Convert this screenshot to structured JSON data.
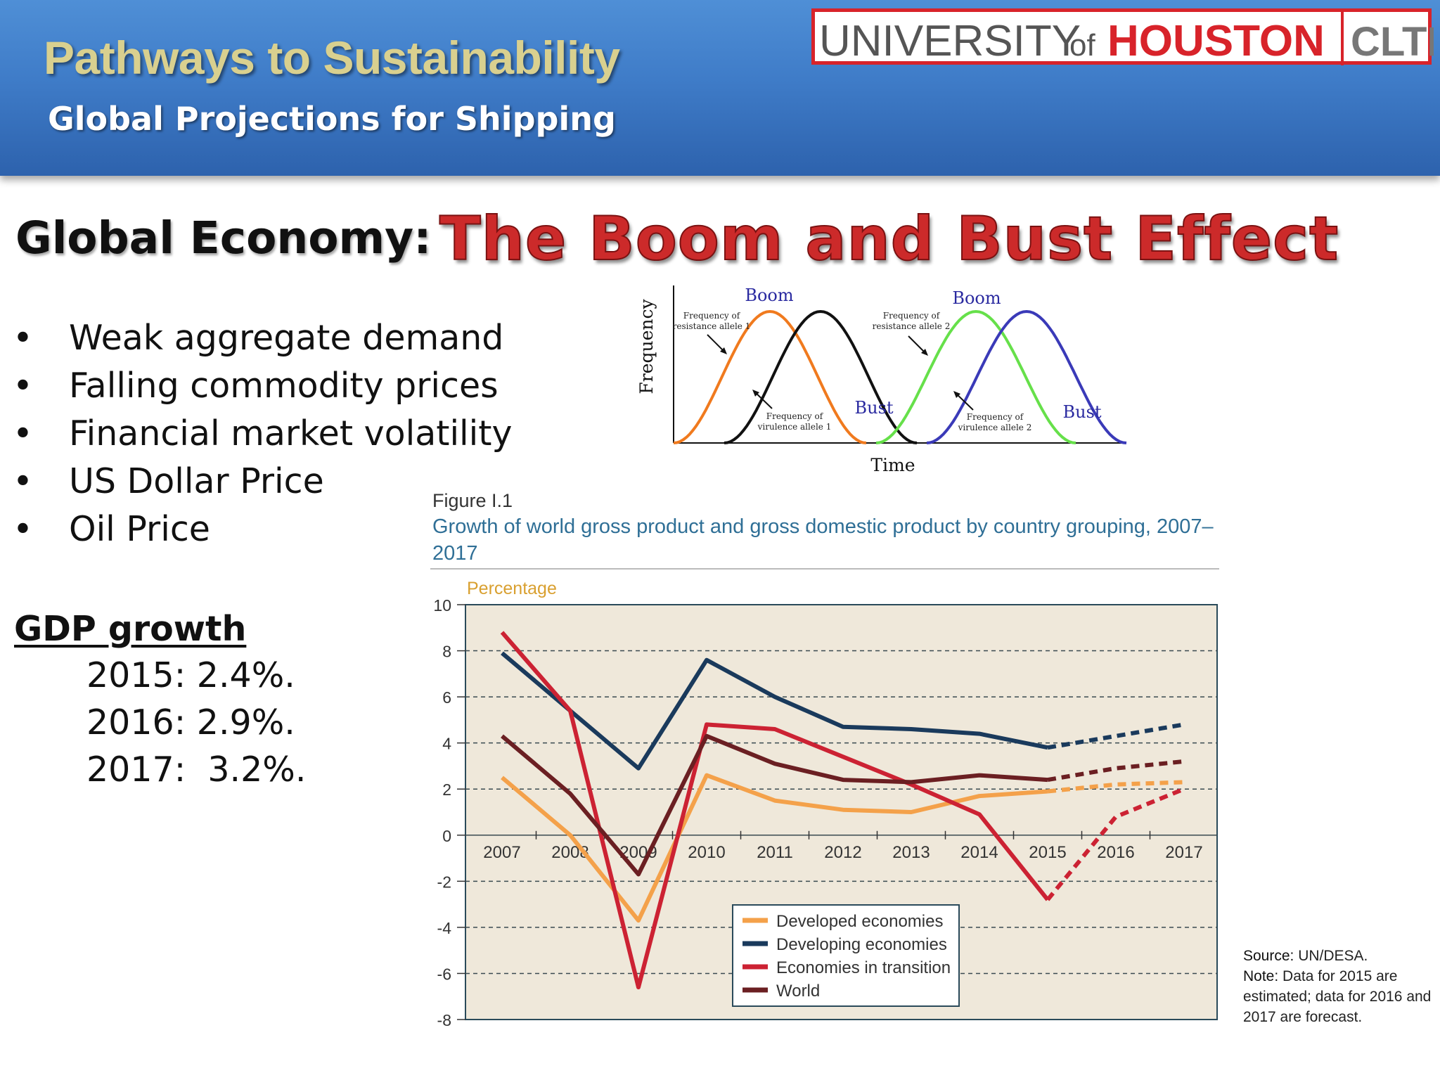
{
  "header": {
    "title": "Pathways to Sustainability",
    "subtitle": "Global Projections for Shipping",
    "logo": {
      "part1": "UNIVERSITY",
      "part2": "of",
      "part3": "HOUSTON",
      "part4": "CLTP"
    }
  },
  "heading": {
    "left": "Global Economy:",
    "right": "The Boom and Bust Effect"
  },
  "bullets": [
    "Weak aggregate demand",
    "Falling commodity prices",
    "Financial market volatility",
    "US Dollar Price",
    "Oil Price"
  ],
  "bullet_symbol": "•",
  "gdp": {
    "title": "GDP growth",
    "lines": [
      "2015: 2.4%.",
      "2016: 2.9%.",
      "2017:  3.2%."
    ]
  },
  "boom_bust_diagram": {
    "ylabel": "Frequency",
    "xlabel": "Time",
    "labels": {
      "boom1": "Boom",
      "boom2": "Boom",
      "bust1": "Bust",
      "bust2": "Bust",
      "res1_a": "Frequency of",
      "res1_b": "resistance allele 1",
      "vir1_a": "Frequency of",
      "vir1_b": "virulence allele 1",
      "res2_a": "Frequency of",
      "res2_b": "resistance allele 2",
      "vir2_a": "Frequency of",
      "vir2_b": "virulence allele 2"
    },
    "colors": {
      "resistance1": "#f07a1e",
      "virulence1": "#111111",
      "resistance2": "#66e04a",
      "virulence2": "#3a3ab8"
    }
  },
  "figure": {
    "label": "Figure I.1",
    "caption": "Growth of world gross product and gross domestic product by country grouping, 2007–2017"
  },
  "chart_data": {
    "type": "line",
    "title": "",
    "ylabel": "Percentage",
    "xlabel": "",
    "ylim": [
      -8,
      10
    ],
    "yticks": [
      10,
      8,
      6,
      4,
      2,
      0,
      -2,
      -4,
      -6,
      -8
    ],
    "x": [
      "2007",
      "2008",
      "2009",
      "2010",
      "2011",
      "2012",
      "2013",
      "2014",
      "2015",
      "2016",
      "2017"
    ],
    "grid": true,
    "background": "#efe8da",
    "forecast_from": "2015",
    "series": [
      {
        "name": "Developed economies",
        "color": "#f4a14a",
        "values": [
          2.5,
          0.0,
          -3.7,
          2.6,
          1.5,
          1.1,
          1.0,
          1.7,
          1.9,
          2.2,
          2.3
        ]
      },
      {
        "name": "Developing economies",
        "color": "#1a3a5c",
        "values": [
          7.9,
          5.4,
          2.9,
          7.6,
          6.0,
          4.7,
          4.6,
          4.4,
          3.8,
          4.3,
          4.8
        ]
      },
      {
        "name": "Economies in transition",
        "color": "#cc2233",
        "values": [
          8.8,
          5.4,
          -6.6,
          4.8,
          4.6,
          3.4,
          2.2,
          0.9,
          -2.8,
          0.8,
          2.0
        ]
      },
      {
        "name": "World",
        "color": "#6b1f22",
        "values": [
          4.3,
          1.8,
          -1.7,
          4.3,
          3.1,
          2.4,
          2.3,
          2.6,
          2.4,
          2.9,
          3.2
        ]
      }
    ],
    "legend_position": "bottom-center"
  },
  "source": {
    "source_label": "Source:",
    "source_text": " UN/DESA.",
    "note_label": "Note:",
    "note_text": " Data for 2015 are estimated; data for 2016 and 2017 are forecast."
  }
}
